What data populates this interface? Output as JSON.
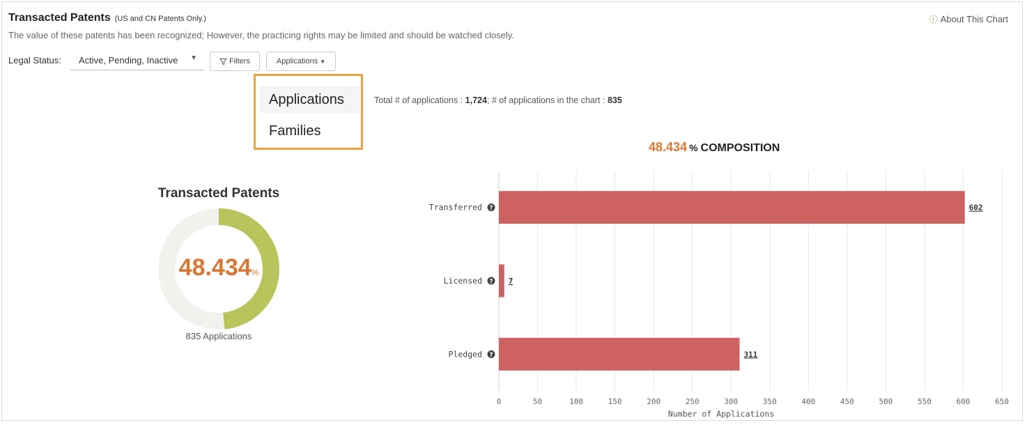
{
  "header": {
    "title": "Transacted Patents",
    "title_note": "(US and CN Patents Only.)",
    "description": "The value of these patents has been recognized; However, the practicing rights may be limited and should be watched closely.",
    "about_label": "About This Chart"
  },
  "filters": {
    "legal_status_label": "Legal Status:",
    "legal_status_value": "Active, Pending, Inactive",
    "filters_button": "Filters",
    "mode_button": "Applications"
  },
  "dropdown": {
    "options": [
      "Applications",
      "Families"
    ],
    "selected": "Applications"
  },
  "summary": {
    "total_text": "Total # of applications : ",
    "total_value": "1,724",
    "in_chart_text": "; # of applications in the chart : ",
    "in_chart_value": "835"
  },
  "composition": {
    "percent": "48.434",
    "percent_sign": "%",
    "label": "COMPOSITION"
  },
  "donut": {
    "title": "Transacted Patents",
    "value": "48.434",
    "percent_sign": "%",
    "count_label": "835 Applications",
    "fraction": 0.48434,
    "fill_color": "#b9c45a",
    "track_color": "#f1f1ee"
  },
  "chart_data": {
    "type": "bar",
    "orientation": "horizontal",
    "categories": [
      "Transferred",
      "Licensed",
      "Pledged"
    ],
    "values": [
      602,
      7,
      311
    ],
    "xlabel": "Number of Applications",
    "ylabel": "",
    "xlim": [
      0,
      650
    ],
    "xticks": [
      0,
      50,
      100,
      150,
      200,
      250,
      300,
      350,
      400,
      450,
      500,
      550,
      600,
      650
    ],
    "grid": true,
    "bar_color": "#cd6260"
  }
}
